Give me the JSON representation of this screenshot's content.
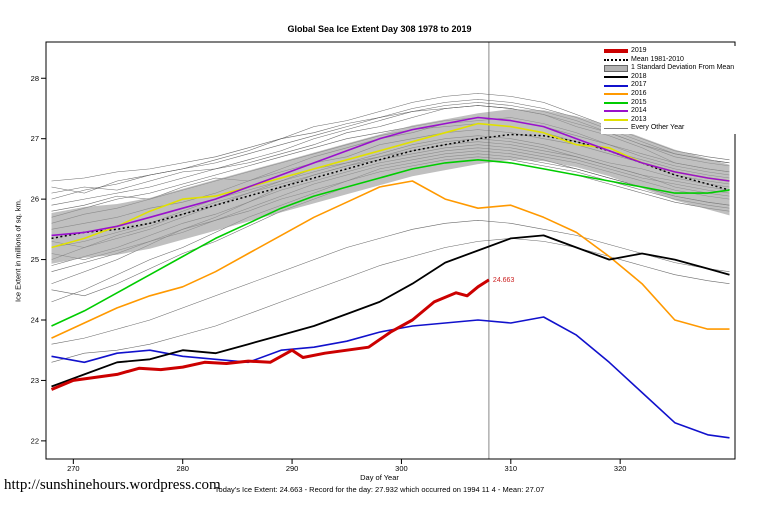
{
  "title": "Global Sea Ice Extent Day 308 1978 to 2019",
  "footer": {
    "url": "http://sunshinehours.wordpress.com",
    "summary": "Today's Ice Extent: 24.663  - Record for the day: 27.932 which occurred on 1994 11 4  - Mean: 27.07"
  },
  "annotation": {
    "label": "24.663",
    "day": 308,
    "value": 24.663,
    "color": "#cc2222"
  },
  "vline_day": 308,
  "legend": {
    "items": [
      {
        "label": "2019",
        "color": "#cc0000",
        "type": "thick"
      },
      {
        "label": "Mean 1981-2010",
        "color": "#000000",
        "type": "dashed"
      },
      {
        "label": "1 Standard Deviation From Mean",
        "color": "#b3b3b3",
        "type": "band"
      },
      {
        "label": "2018",
        "color": "#000000",
        "type": "line"
      },
      {
        "label": "2017",
        "color": "#1111cc",
        "type": "line"
      },
      {
        "label": "2016",
        "color": "#ff9900",
        "type": "line"
      },
      {
        "label": "2015",
        "color": "#00cc00",
        "type": "line"
      },
      {
        "label": "2014",
        "color": "#9911cc",
        "type": "line"
      },
      {
        "label": "2013",
        "color": "#e0e000",
        "type": "line"
      },
      {
        "label": "Every Other Year",
        "color": "#777777",
        "type": "thin"
      }
    ]
  },
  "chart_data": {
    "type": "line",
    "title": "Global Sea Ice Extent Day 308 1978 to 2019",
    "xlabel": "Day of Year",
    "ylabel": "Ice Extent in millions of sq. km.",
    "xlim": [
      267.5,
      330.5
    ],
    "ylim": [
      21.7,
      28.6
    ],
    "x_ticks": [
      270,
      280,
      290,
      300,
      310,
      320
    ],
    "y_ticks": [
      22,
      23,
      24,
      25,
      26,
      27,
      28
    ],
    "x": [
      268,
      271,
      274,
      277,
      280,
      283,
      286,
      289,
      292,
      295,
      298,
      301,
      304,
      307,
      310,
      313,
      316,
      319,
      322,
      325,
      328,
      330
    ],
    "mean": {
      "name": "Mean 1981-2010",
      "sd": 0.42,
      "values": [
        25.35,
        25.45,
        25.5,
        25.6,
        25.75,
        25.9,
        26.05,
        26.2,
        26.35,
        26.5,
        26.65,
        26.8,
        26.9,
        27.0,
        27.07,
        27.05,
        26.95,
        26.8,
        26.6,
        26.4,
        26.25,
        26.15
      ]
    },
    "series": [
      {
        "name": "2019",
        "color": "#cc0000",
        "width": 3,
        "x": [
          268,
          270,
          272,
          274,
          276,
          278,
          280,
          282,
          284,
          286,
          288,
          290,
          291,
          293,
          295,
          297,
          299,
          301,
          303,
          305,
          306,
          307,
          308
        ],
        "values": [
          22.85,
          23.0,
          23.05,
          23.1,
          23.2,
          23.18,
          23.22,
          23.3,
          23.28,
          23.32,
          23.3,
          23.5,
          23.38,
          23.45,
          23.5,
          23.55,
          23.8,
          24.0,
          24.3,
          24.45,
          24.4,
          24.55,
          24.663
        ]
      },
      {
        "name": "2018",
        "color": "#000000",
        "width": 1.8,
        "values": [
          22.9,
          23.1,
          23.3,
          23.35,
          23.5,
          23.45,
          23.6,
          23.75,
          23.9,
          24.1,
          24.3,
          24.6,
          24.95,
          25.15,
          25.35,
          25.4,
          25.2,
          25.0,
          25.1,
          25.0,
          24.85,
          24.75
        ]
      },
      {
        "name": "2017",
        "color": "#1111cc",
        "width": 1.6,
        "values": [
          23.4,
          23.3,
          23.45,
          23.5,
          23.4,
          23.35,
          23.3,
          23.5,
          23.55,
          23.65,
          23.8,
          23.9,
          23.95,
          24.0,
          23.95,
          24.05,
          23.75,
          23.3,
          22.8,
          22.3,
          22.1,
          22.05
        ]
      },
      {
        "name": "2016",
        "color": "#ff9900",
        "width": 1.6,
        "values": [
          23.7,
          23.95,
          24.2,
          24.4,
          24.55,
          24.8,
          25.1,
          25.4,
          25.7,
          25.95,
          26.2,
          26.3,
          26.0,
          25.85,
          25.9,
          25.7,
          25.45,
          25.05,
          24.6,
          24.0,
          23.85,
          23.85
        ]
      },
      {
        "name": "2015",
        "color": "#00cc00",
        "width": 1.6,
        "values": [
          23.9,
          24.15,
          24.45,
          24.75,
          25.05,
          25.35,
          25.6,
          25.85,
          26.05,
          26.2,
          26.35,
          26.5,
          26.6,
          26.65,
          26.6,
          26.5,
          26.4,
          26.3,
          26.2,
          26.1,
          26.1,
          26.15
        ]
      },
      {
        "name": "2014",
        "color": "#9911cc",
        "width": 1.6,
        "values": [
          25.4,
          25.45,
          25.55,
          25.7,
          25.85,
          26.0,
          26.2,
          26.4,
          26.6,
          26.8,
          27.0,
          27.15,
          27.25,
          27.35,
          27.3,
          27.2,
          27.0,
          26.8,
          26.6,
          26.45,
          26.35,
          26.3
        ]
      },
      {
        "name": "2013",
        "color": "#e0e000",
        "width": 1.6,
        "values": [
          25.2,
          25.35,
          25.55,
          25.8,
          26.0,
          26.05,
          26.2,
          26.35,
          26.5,
          26.65,
          26.8,
          26.95,
          27.1,
          27.25,
          27.2,
          27.1,
          26.9,
          26.85,
          26.6,
          26.45,
          26.35,
          26.3
        ]
      }
    ],
    "other_years": [
      [
        26.1,
        26.2,
        26.15,
        26.3,
        26.45,
        26.5,
        26.6,
        26.75,
        26.9,
        27.1,
        27.2,
        27.35,
        27.5,
        27.55,
        27.5,
        27.4,
        27.2,
        27.05,
        26.85,
        26.6,
        26.5,
        26.45
      ],
      [
        25.8,
        25.9,
        26.05,
        26.0,
        26.2,
        26.35,
        26.3,
        26.5,
        26.7,
        26.85,
        27.0,
        27.1,
        27.25,
        27.3,
        27.35,
        27.25,
        27.1,
        26.9,
        26.7,
        26.55,
        26.45,
        26.4
      ],
      [
        25.5,
        25.6,
        25.7,
        25.85,
        25.95,
        26.1,
        26.3,
        26.45,
        26.6,
        26.7,
        26.9,
        27.0,
        27.1,
        27.15,
        27.1,
        27.0,
        26.9,
        26.75,
        26.6,
        26.4,
        26.3,
        26.25
      ],
      [
        25.0,
        25.2,
        25.35,
        25.5,
        25.7,
        25.9,
        26.1,
        26.3,
        26.5,
        26.6,
        26.75,
        26.9,
        27.0,
        27.05,
        27.0,
        26.9,
        26.75,
        26.6,
        26.5,
        26.35,
        26.25,
        26.2
      ],
      [
        24.6,
        24.8,
        25.0,
        25.25,
        25.5,
        25.7,
        25.95,
        26.2,
        26.4,
        26.55,
        26.7,
        26.85,
        26.95,
        27.0,
        26.95,
        26.85,
        26.7,
        26.55,
        26.4,
        26.2,
        26.1,
        26.05
      ],
      [
        24.3,
        24.5,
        24.75,
        25.0,
        25.2,
        25.45,
        25.7,
        25.9,
        26.1,
        26.3,
        26.5,
        26.6,
        26.7,
        26.75,
        26.7,
        26.6,
        26.5,
        26.35,
        26.2,
        26.05,
        25.95,
        25.9
      ],
      [
        25.9,
        26.0,
        26.1,
        26.2,
        26.35,
        26.5,
        26.65,
        26.8,
        27.0,
        27.15,
        27.3,
        27.45,
        27.55,
        27.6,
        27.55,
        27.45,
        27.3,
        27.1,
        26.9,
        26.7,
        26.6,
        26.55
      ],
      [
        26.2,
        26.1,
        26.3,
        26.4,
        26.5,
        26.65,
        26.8,
        27.0,
        27.2,
        27.3,
        27.45,
        27.6,
        27.7,
        27.75,
        27.7,
        27.6,
        27.4,
        27.2,
        27.0,
        26.8,
        26.7,
        26.65
      ],
      [
        25.2,
        25.3,
        25.45,
        25.6,
        25.8,
        26.0,
        26.15,
        26.3,
        26.45,
        26.6,
        26.7,
        26.8,
        26.9,
        26.95,
        26.9,
        26.8,
        26.7,
        26.55,
        26.4,
        26.3,
        26.2,
        26.15
      ],
      [
        24.9,
        25.05,
        25.2,
        25.4,
        25.6,
        25.75,
        25.95,
        26.15,
        26.3,
        26.45,
        26.6,
        26.7,
        26.8,
        26.85,
        26.8,
        26.7,
        26.6,
        26.45,
        26.3,
        26.15,
        26.05,
        26.0
      ],
      [
        25.6,
        25.75,
        25.85,
        26.0,
        26.15,
        26.3,
        26.45,
        26.6,
        26.75,
        26.9,
        27.05,
        27.15,
        27.2,
        27.25,
        27.2,
        27.1,
        26.95,
        26.8,
        26.65,
        26.5,
        26.4,
        26.35
      ],
      [
        24.5,
        24.4,
        24.6,
        24.85,
        25.1,
        25.3,
        25.55,
        25.8,
        26.0,
        26.2,
        26.35,
        26.5,
        26.6,
        26.65,
        26.6,
        26.5,
        26.4,
        26.25,
        26.1,
        25.95,
        25.85,
        25.8
      ],
      [
        26.0,
        26.15,
        26.25,
        26.4,
        26.5,
        26.6,
        26.75,
        26.9,
        27.05,
        27.2,
        27.35,
        27.5,
        27.6,
        27.65,
        27.6,
        27.5,
        27.35,
        27.15,
        26.95,
        26.75,
        26.65,
        26.6
      ],
      [
        25.3,
        25.2,
        25.4,
        25.55,
        25.75,
        25.95,
        26.1,
        26.25,
        26.4,
        26.55,
        26.65,
        26.75,
        26.85,
        26.9,
        26.85,
        26.75,
        26.65,
        26.5,
        26.35,
        26.25,
        26.15,
        26.1
      ],
      [
        23.3,
        23.45,
        23.5,
        23.6,
        23.75,
        23.9,
        24.1,
        24.3,
        24.5,
        24.7,
        24.9,
        25.05,
        25.2,
        25.3,
        25.35,
        25.3,
        25.2,
        25.05,
        24.9,
        24.75,
        24.65,
        24.6
      ],
      [
        23.6,
        23.7,
        23.85,
        24.0,
        24.2,
        24.4,
        24.6,
        24.8,
        25.0,
        25.2,
        25.35,
        25.5,
        25.6,
        25.65,
        25.6,
        25.5,
        25.4,
        25.25,
        25.1,
        24.95,
        24.85,
        24.8
      ],
      [
        25.7,
        25.85,
        26.0,
        26.1,
        26.25,
        26.4,
        26.55,
        26.7,
        26.85,
        27.0,
        27.1,
        27.2,
        27.3,
        27.35,
        27.3,
        27.2,
        27.05,
        26.9,
        26.75,
        26.6,
        26.5,
        26.45
      ],
      [
        24.8,
        24.95,
        25.1,
        25.3,
        25.45,
        25.65,
        25.85,
        26.05,
        26.25,
        26.4,
        26.55,
        26.65,
        26.75,
        26.8,
        26.75,
        26.65,
        26.5,
        26.35,
        26.2,
        26.05,
        25.95,
        25.9
      ],
      [
        26.3,
        26.35,
        26.45,
        26.5,
        26.6,
        26.7,
        26.85,
        27.0,
        27.1,
        27.25,
        27.35,
        27.45,
        27.5,
        27.55,
        27.5,
        27.4,
        27.25,
        27.1,
        26.9,
        26.75,
        26.65,
        26.6
      ],
      [
        25.1,
        25.0,
        25.15,
        25.3,
        25.5,
        25.65,
        25.8,
        26.0,
        26.15,
        26.3,
        26.45,
        26.55,
        26.65,
        26.7,
        26.65,
        26.55,
        26.45,
        26.3,
        26.15,
        26.0,
        25.9,
        25.85
      ]
    ]
  }
}
